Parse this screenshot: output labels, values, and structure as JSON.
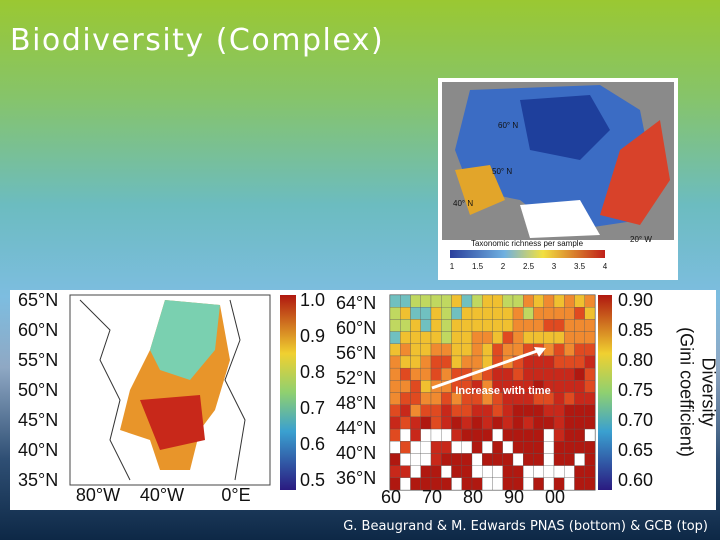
{
  "header": {
    "title": "Biodiversity (Complex)"
  },
  "top_figure": {
    "map_labels": [
      "60° N",
      "50° N",
      "40° N",
      "20° W"
    ],
    "colorbar_title": "Taxonomic richness per sample",
    "colorbar_ticks": [
      "1",
      "1.5",
      "2",
      "2.5",
      "3",
      "3.5",
      "4"
    ]
  },
  "left_figure": {
    "lat_labels": [
      "65°N",
      "60°N",
      "55°N",
      "50°N",
      "45°N",
      "40°N",
      "35°N"
    ],
    "lon_labels": [
      "80°W",
      "40°W",
      "0°E"
    ],
    "colorbar_ticks": [
      "1.0",
      "0.9",
      "0.8",
      "0.7",
      "0.6",
      "0.5"
    ]
  },
  "right_figure": {
    "lat_labels": [
      "64°N",
      "60°N",
      "56°N",
      "52°N",
      "48°N",
      "44°N",
      "40°N",
      "36°N"
    ],
    "year_labels": [
      "60",
      "70",
      "80",
      "90",
      "00"
    ],
    "annotation": "Increase with time",
    "colorbar_ticks": [
      "0.90",
      "0.85",
      "0.80",
      "0.75",
      "0.70",
      "0.65",
      "0.60"
    ],
    "colorbar_title": [
      "Diversity",
      "(Gini coefficient)"
    ]
  },
  "caption": "G. Beaugrand & M. Edwards PNAS (bottom) & GCB (top)"
}
